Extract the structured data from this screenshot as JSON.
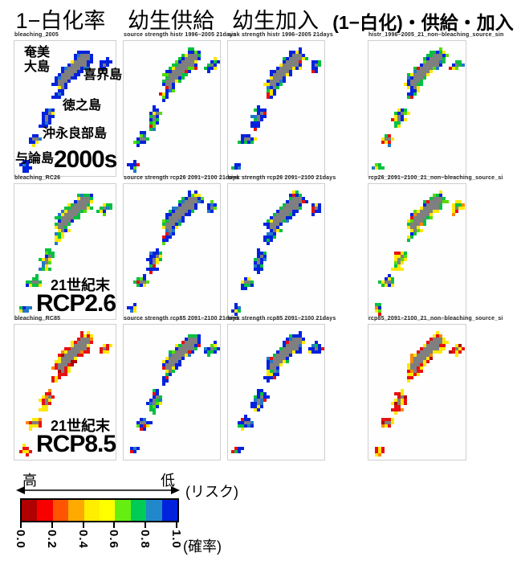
{
  "headers": [
    {
      "label": "1−白化率"
    },
    {
      "label": "幼生供給"
    },
    {
      "label": "幼生加入"
    },
    {
      "label": "(1−白化)・供給・加入"
    }
  ],
  "grid": {
    "rows": [
      {
        "overlay": {
          "era": "",
          "scenario": "2000s"
        },
        "panels": [
          {
            "title": "bleaching_2005",
            "palette": [
              "#0022dd",
              "#0022dd",
              "#0022dd",
              "#0022dd",
              "#0022dd",
              "#0022dd",
              "#0022dd",
              "#0022dd",
              "#0022dd",
              "#0022dd",
              "#2277cc",
              "#ffe800"
            ]
          },
          {
            "title": "source strength histr 1996–2005 21days",
            "palette": [
              "#0022dd",
              "#0022dd",
              "#0022dd",
              "#0022dd",
              "#0022dd",
              "#00c040",
              "#00c040",
              "#00c040",
              "#2277cc",
              "#ffe800",
              "#e81010",
              "#55dd00"
            ]
          },
          {
            "title": "sink strength histr 1996–2005 21days",
            "palette": [
              "#0022dd",
              "#0022dd",
              "#0022dd",
              "#0022dd",
              "#0022dd",
              "#0022dd",
              "#00c040",
              "#00c040",
              "#2277cc",
              "#ffe800",
              "#e81010"
            ]
          },
          {
            "title": "histr_1996–2005_21_non–bleaching_source_sin",
            "palette": [
              "#ffe800",
              "#ffe800",
              "#ffe800",
              "#00c040",
              "#00c040",
              "#00c040",
              "#0022dd",
              "#0022dd",
              "#55dd00",
              "#e81010",
              "#2277cc",
              "#ffe800"
            ]
          }
        ]
      },
      {
        "overlay": {
          "era": "21世紀末",
          "scenario": "RCP2.6"
        },
        "panels": [
          {
            "title": "bleaching_RC26",
            "palette": [
              "#00c040",
              "#00c040",
              "#00c040",
              "#00c040",
              "#ffe800",
              "#ffe800",
              "#0022dd",
              "#0022dd",
              "#55dd00",
              "#2277cc",
              "#ffe800",
              "#00c040"
            ]
          },
          {
            "title": "source strength rcp26 2091–2100 21days",
            "palette": [
              "#0022dd",
              "#0022dd",
              "#0022dd",
              "#0022dd",
              "#0022dd",
              "#00c040",
              "#00c040",
              "#ffe800",
              "#e81010",
              "#2277cc",
              "#55dd00"
            ]
          },
          {
            "title": "sink strength rcp26 2091–2100 21days",
            "palette": [
              "#0022dd",
              "#0022dd",
              "#0022dd",
              "#0022dd",
              "#0022dd",
              "#0022dd",
              "#00c040",
              "#00c040",
              "#ffe800",
              "#e81010",
              "#2277cc"
            ]
          },
          {
            "title": "rcp26_2091–2100_21_non–bleaching_source_si",
            "palette": [
              "#ffe800",
              "#ffe800",
              "#ffe800",
              "#ffe800",
              "#00c040",
              "#00c040",
              "#55dd00",
              "#e81010",
              "#ff8800",
              "#ffe800",
              "#00c040",
              "#0022dd"
            ]
          }
        ]
      },
      {
        "overlay": {
          "era": "21世紀末",
          "scenario": "RCP8.5"
        },
        "panels": [
          {
            "title": "bleaching_RC85",
            "palette": [
              "#e81010",
              "#e81010",
              "#e81010",
              "#ffe800",
              "#ffe800",
              "#ffe800",
              "#e81010",
              "#ffe800",
              "#ff8800",
              "#e81010",
              "#ffe800",
              "#b00000"
            ]
          },
          {
            "title": "source strength rcp85 2091–2100 21days",
            "palette": [
              "#0022dd",
              "#0022dd",
              "#0022dd",
              "#0022dd",
              "#00c040",
              "#00c040",
              "#ffe800",
              "#e81010",
              "#2277cc",
              "#0022dd",
              "#55dd00"
            ]
          },
          {
            "title": "sink strength rcp85 2091–2100 21days",
            "palette": [
              "#0022dd",
              "#0022dd",
              "#0022dd",
              "#0022dd",
              "#0022dd",
              "#00c040",
              "#00c040",
              "#ffe800",
              "#e81010",
              "#2277cc"
            ]
          },
          {
            "title": "rcp85_2091–2100_21_non–bleaching_source_si",
            "palette": [
              "#e81010",
              "#e81010",
              "#e81010",
              "#ffe800",
              "#ffe800",
              "#ff8800",
              "#e81010",
              "#ffe800",
              "#ff8800",
              "#b00000",
              "#ffe800",
              "#e81010"
            ]
          }
        ]
      }
    ]
  },
  "island_labels": {
    "amami_line1": "奄美",
    "amami_line2": "大島",
    "kikai": "喜界島",
    "tokunoshima": "徳之島",
    "okinoerabu": "沖永良部島",
    "yoron": "与論島"
  },
  "map": {
    "cell": 4,
    "island_fill": "#7f7f7f",
    "island_order": [
      "amami",
      "amami_s",
      "kikai",
      "tokunoshima",
      "okinoerabu",
      "yoron"
    ],
    "islands": {
      "amami": [
        [
          3,
          20,
          22
        ],
        [
          4,
          19,
          23
        ],
        [
          5,
          18,
          23
        ],
        [
          6,
          17,
          22
        ],
        [
          7,
          16,
          22
        ],
        [
          8,
          15,
          21
        ],
        [
          9,
          14,
          19
        ],
        [
          10,
          13,
          18
        ],
        [
          11,
          13,
          17
        ],
        [
          12,
          12,
          16
        ],
        [
          13,
          12,
          15
        ],
        [
          14,
          13,
          15
        ],
        [
          15,
          13,
          14
        ]
      ],
      "amami_s": [
        [
          16,
          12,
          13
        ],
        [
          17,
          12,
          12
        ]
      ],
      "kikai": [
        [
          6,
          27,
          28
        ],
        [
          7,
          26,
          28
        ],
        [
          8,
          26,
          27
        ]
      ],
      "tokunoshima": [
        [
          21,
          9,
          10
        ],
        [
          22,
          9,
          11
        ],
        [
          23,
          8,
          10
        ],
        [
          24,
          8,
          10
        ],
        [
          25,
          8,
          9
        ],
        [
          26,
          8,
          9
        ]
      ],
      "okinoerabu": [
        [
          29,
          5,
          6
        ],
        [
          30,
          4,
          7
        ],
        [
          31,
          4,
          6
        ]
      ],
      "yoron": [
        [
          38,
          2,
          3
        ],
        [
          39,
          2,
          3
        ]
      ]
    }
  },
  "colorbar": {
    "high_label": "高",
    "low_label": "低",
    "risk_label": "(リスク)",
    "prob_label": "(確率)",
    "ticks": [
      "0.0",
      "0.2",
      "0.4",
      "0.6",
      "0.8",
      "1.0"
    ],
    "colors": [
      "#b00000",
      "#f80000",
      "#ff5500",
      "#ffaa00",
      "#ffee00",
      "#ffff00",
      "#66ee11",
      "#00cc55",
      "#2288cc",
      "#0022dd"
    ]
  }
}
